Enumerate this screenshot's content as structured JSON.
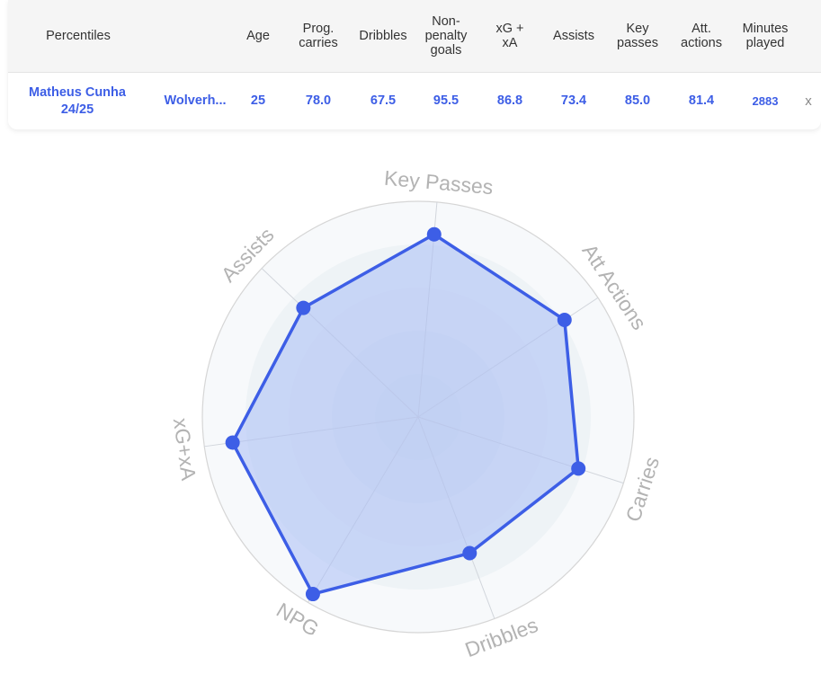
{
  "table": {
    "headers": {
      "percentiles": "Percentiles",
      "age": "Age",
      "prog_carries": "Prog.\ncarries",
      "dribbles": "Dribbles",
      "npg": "Non-\npenalty\ngoals",
      "xgxa": "xG +\nxA",
      "assists": "Assists",
      "key_passes": "Key\npasses",
      "att_actions": "Att.\nactions",
      "minutes": "Minutes\nplayed"
    },
    "row": {
      "player": "Matheus Cunha\n24/25",
      "team": "Wolverh...",
      "age": "25",
      "prog_carries": "78.0",
      "dribbles": "67.5",
      "npg": "95.5",
      "xgxa": "86.8",
      "assists": "73.4",
      "key_passes": "85.0",
      "att_actions": "81.4",
      "minutes": "2883",
      "remove": "x"
    }
  },
  "chart_data": {
    "type": "radar",
    "axes": [
      "Key Passes",
      "Att Actions",
      "Carries",
      "Dribbles",
      "NPG",
      "xG+xA",
      "Assists"
    ],
    "values": [
      85.0,
      81.4,
      78.0,
      67.5,
      95.5,
      86.8,
      73.4
    ],
    "range": [
      0,
      100
    ],
    "series_color": "#3d5ee6",
    "fill_color": "#a9bdf5"
  }
}
